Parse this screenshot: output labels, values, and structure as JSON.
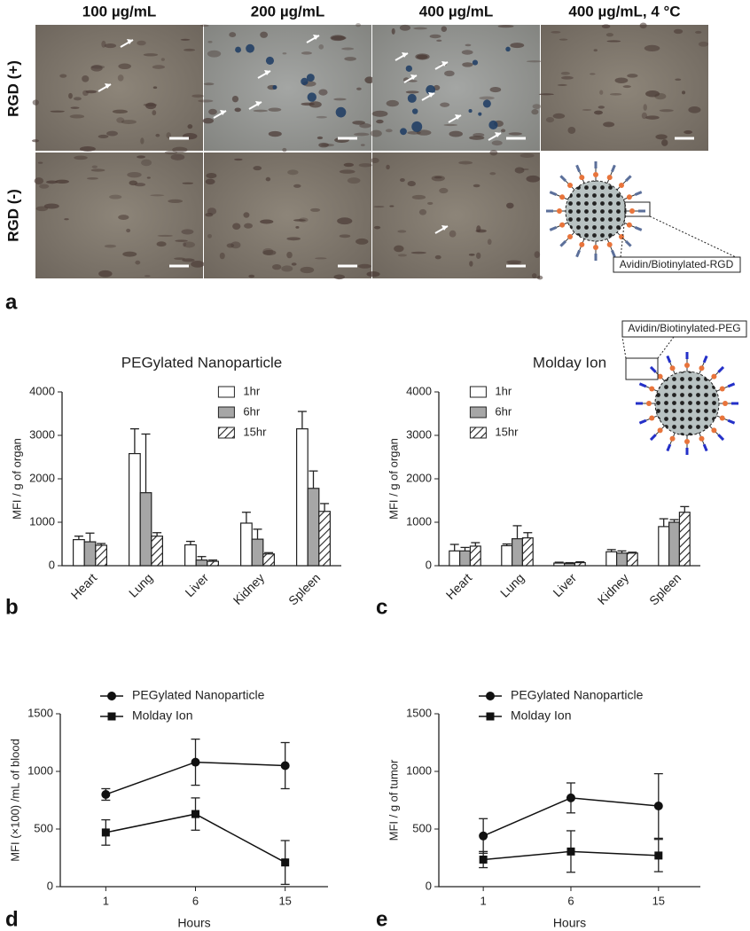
{
  "panel_a": {
    "columns": [
      "100 µg/mL",
      "200 µg/mL",
      "400 µg/mL",
      "400 µg/mL, 4 °C"
    ],
    "rows": [
      "RGD (+)",
      "RGD (-)"
    ],
    "inset_label": "Avidin/Biotinylated-RGD"
  },
  "panel_labels": [
    "a",
    "b",
    "c",
    "d",
    "e"
  ],
  "chart_data": [
    {
      "type": "bar",
      "title": "PEGylated Nanoparticle",
      "ylabel": "MFI / g of organ",
      "categories": [
        "Heart",
        "Lung",
        "Liver",
        "Kidney",
        "Spleen"
      ],
      "series": [
        {
          "name": "1hr",
          "color": "#ffffff",
          "values": [
            600,
            2580,
            480,
            980,
            3150
          ],
          "errors": [
            80,
            570,
            80,
            250,
            400
          ]
        },
        {
          "name": "6hr",
          "color": "#a6a6a6",
          "values": [
            550,
            1680,
            130,
            610,
            1780
          ],
          "errors": [
            200,
            1350,
            80,
            230,
            400
          ]
        },
        {
          "name": "15hr",
          "color": "#ffffff",
          "hatch": true,
          "values": [
            470,
            680,
            100,
            270,
            1250
          ],
          "errors": [
            40,
            80,
            30,
            30,
            180
          ]
        }
      ],
      "ylim": [
        0,
        4000
      ],
      "yticks": [
        0,
        1000,
        2000,
        3000,
        4000
      ],
      "legend": "upper right"
    },
    {
      "type": "bar",
      "title": "Molday Ion",
      "ylabel": "MFI / g of organ",
      "annotation": "Avidin/Biotinylated-PEG",
      "categories": [
        "Heart",
        "Lung",
        "Liver",
        "Kidney",
        "Spleen"
      ],
      "series": [
        {
          "name": "1hr",
          "color": "#ffffff",
          "values": [
            340,
            460,
            60,
            320,
            900
          ],
          "errors": [
            150,
            40,
            20,
            50,
            180
          ]
        },
        {
          "name": "6hr",
          "color": "#a6a6a6",
          "values": [
            340,
            620,
            50,
            290,
            1000
          ],
          "errors": [
            80,
            300,
            20,
            50,
            60
          ]
        },
        {
          "name": "15hr",
          "color": "#ffffff",
          "hatch": true,
          "values": [
            450,
            640,
            70,
            290,
            1230
          ],
          "errors": [
            80,
            120,
            20,
            20,
            130
          ]
        }
      ],
      "ylim": [
        0,
        4000
      ],
      "yticks": [
        0,
        1000,
        2000,
        3000,
        4000
      ],
      "legend": "upper left"
    },
    {
      "type": "line",
      "ylabel": "MFI (×100) /mL of blood",
      "xlabel": "Hours",
      "categories": [
        "1",
        "6",
        "15"
      ],
      "series": [
        {
          "name": "PEGylated Nanoparticle",
          "color": "#111111",
          "marker": "circle",
          "values": [
            800,
            1080,
            1050
          ],
          "errors": [
            50,
            200,
            200
          ]
        },
        {
          "name": "Molday Ion",
          "color": "#111111",
          "marker": "square",
          "values": [
            470,
            630,
            210
          ],
          "errors": [
            110,
            140,
            190
          ]
        }
      ],
      "ylim": [
        0,
        1500
      ],
      "yticks": [
        0,
        500,
        1000,
        1500
      ],
      "legend": "upper left"
    },
    {
      "type": "line",
      "ylabel": "MFI / g of tumor",
      "xlabel": "Hours",
      "categories": [
        "1",
        "6",
        "15"
      ],
      "series": [
        {
          "name": "PEGylated Nanoparticle",
          "color": "#111111",
          "marker": "circle",
          "values": [
            440,
            770,
            700
          ],
          "errors": [
            150,
            130,
            280
          ]
        },
        {
          "name": "Molday Ion",
          "color": "#111111",
          "marker": "square",
          "values": [
            235,
            305,
            270
          ],
          "errors": [
            70,
            180,
            140
          ]
        }
      ],
      "ylim": [
        0,
        1500
      ],
      "yticks": [
        0,
        500,
        1000,
        1500
      ],
      "legend": "upper left"
    }
  ]
}
